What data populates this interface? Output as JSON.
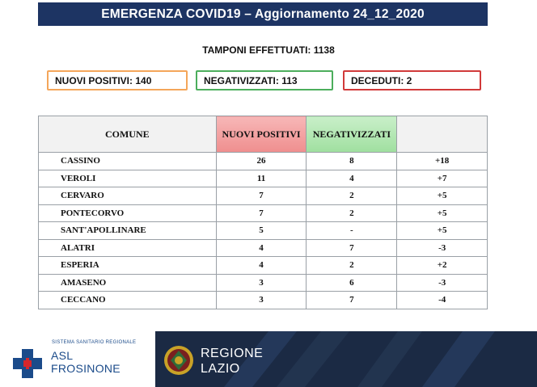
{
  "title": "EMERGENZA COVID19 – Aggiornamento 24_12_2020",
  "tamponi": "TAMPONI EFFETTUATI: 1138",
  "summary": {
    "nuovi_positivi": "NUOVI POSITIVI: 140",
    "negativizzati": "NEGATIVIZZATI: 113",
    "deceduti": "DECEDUTI: 2"
  },
  "colors": {
    "title_bg": "#1d3463",
    "positivi_border": "#f4a65a",
    "negativizzati_border": "#4cae5c",
    "deceduti_border": "#d13a3a"
  },
  "table": {
    "headers": [
      "COMUNE",
      "NUOVI POSITIVI",
      "NEGATIVIZZATI",
      ""
    ],
    "rows": [
      [
        "CASSINO",
        "26",
        "8",
        "+18"
      ],
      [
        "VEROLI",
        "11",
        "4",
        "+7"
      ],
      [
        "CERVARO",
        "7",
        "2",
        "+5"
      ],
      [
        "PONTECORVO",
        "7",
        "2",
        "+5"
      ],
      [
        "SANT'APOLLINARE",
        "5",
        "-",
        "+5"
      ],
      [
        "ALATRI",
        "4",
        "7",
        "-3"
      ],
      [
        "ESPERIA",
        "4",
        "2",
        "+2"
      ],
      [
        "AMASENO",
        "3",
        "6",
        "-3"
      ],
      [
        "CECCANO",
        "3",
        "7",
        "-4"
      ]
    ]
  },
  "footer": {
    "asl_small": "SISTEMA SANITARIO REGIONALE",
    "asl_line1": "ASL",
    "asl_line2": "FROSINONE",
    "regione_line1": "REGIONE",
    "regione_line2": "LAZIO",
    "asl_icon": "asl-cross-icon",
    "regione_icon": "regione-lazio-emblem-icon"
  }
}
